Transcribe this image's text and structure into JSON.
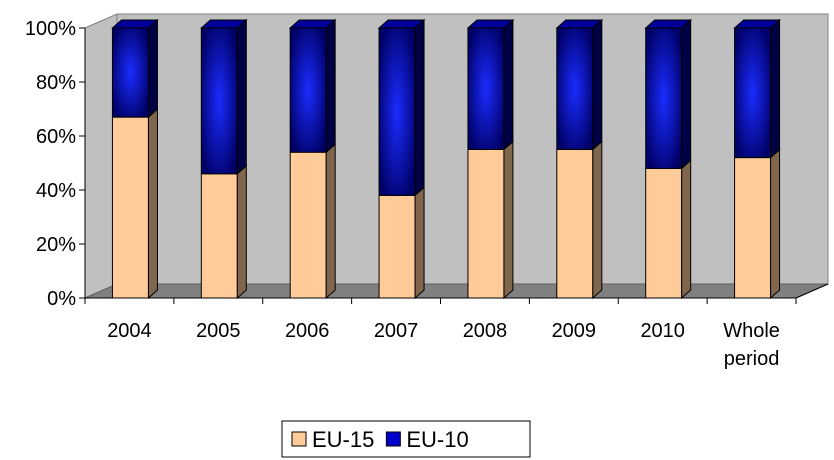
{
  "chart_data": {
    "type": "bar",
    "stacked": "percent",
    "three_d": true,
    "categories": [
      [
        "2004"
      ],
      [
        "2005"
      ],
      [
        "2006"
      ],
      [
        "2007"
      ],
      [
        "2008"
      ],
      [
        "2009"
      ],
      [
        "2010"
      ],
      [
        "Whole",
        "period"
      ]
    ],
    "series": [
      {
        "name": "EU-15",
        "color": "#ffcc99",
        "values": [
          67,
          46,
          54,
          38,
          55,
          55,
          48,
          52
        ]
      },
      {
        "name": "EU-10",
        "color": "#0000cc",
        "values": [
          33,
          54,
          46,
          62,
          45,
          45,
          52,
          48
        ]
      }
    ],
    "y_ticks": [
      "0%",
      "20%",
      "40%",
      "60%",
      "80%",
      "100%"
    ],
    "ylim": [
      0,
      100
    ],
    "title": "",
    "xlabel": "",
    "ylabel": "",
    "legend_position": "bottom",
    "grid": false
  }
}
